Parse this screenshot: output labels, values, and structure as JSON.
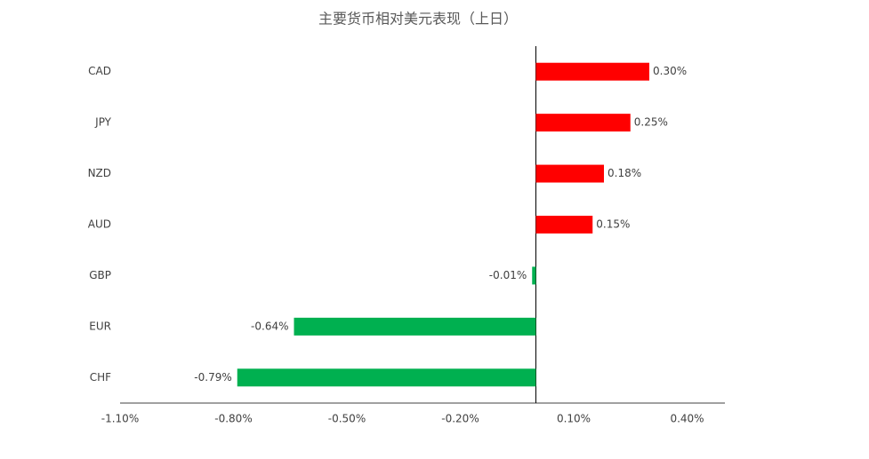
{
  "chart_data": {
    "type": "bar",
    "orientation": "horizontal",
    "title": "主要货币相对美元表现（上日）",
    "categories": [
      "CAD",
      "JPY",
      "NZD",
      "AUD",
      "GBP",
      "EUR",
      "CHF"
    ],
    "values": [
      0.3,
      0.25,
      0.18,
      0.15,
      -0.01,
      -0.64,
      -0.79
    ],
    "value_labels": [
      "0.30%",
      "0.25%",
      "0.18%",
      "0.15%",
      "-0.01%",
      "-0.64%",
      "-0.79%"
    ],
    "positive_color": "#ff0000",
    "negative_color": "#00b050",
    "xlim": [
      -1.1,
      0.5
    ],
    "xticks": [
      {
        "value": -1.1,
        "label": "-1.10%"
      },
      {
        "value": -0.8,
        "label": "-0.80%"
      },
      {
        "value": -0.5,
        "label": "-0.50%"
      },
      {
        "value": -0.2,
        "label": "-0.20%"
      },
      {
        "value": 0.1,
        "label": "0.10%"
      },
      {
        "value": 0.4,
        "label": "0.40%"
      }
    ],
    "grid": false
  }
}
